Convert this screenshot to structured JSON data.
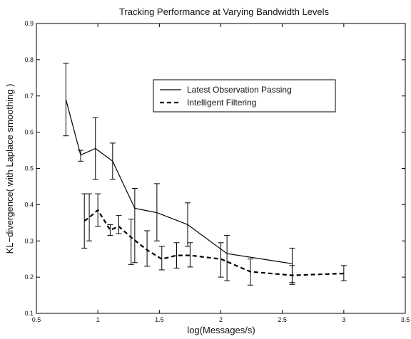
{
  "chart_data": {
    "type": "line",
    "title": "Tracking Performance at Varying Bandwidth Levels",
    "xlabel": "log(Messages/s)",
    "ylabel": "KL−divergence( with Laplace smoothing )",
    "xlim": [
      0.5,
      3.5
    ],
    "ylim": [
      0.1,
      0.9
    ],
    "x_ticks": [
      0.5,
      1,
      1.5,
      2,
      2.5,
      3,
      3.5
    ],
    "x_tick_labels": [
      "0.5",
      "1",
      "1.5",
      "2",
      "2.5",
      "3",
      "3.5"
    ],
    "y_ticks": [
      0.1,
      0.2,
      0.3,
      0.4,
      0.5,
      0.6,
      0.7,
      0.8,
      0.9
    ],
    "y_tick_labels": [
      "0.1",
      "0.2",
      "0.3",
      "0.4",
      "0.5",
      "0.6",
      "0.7",
      "0.8",
      "0.9"
    ],
    "grid": false,
    "legend_position": "upper-center",
    "series": [
      {
        "name": "Latest Observation Passing",
        "line_style": "solid",
        "color": "#000000",
        "x": [
          0.74,
          0.86,
          0.98,
          1.12,
          1.3,
          1.48,
          1.73,
          2.05,
          2.58
        ],
        "y": [
          0.69,
          0.537,
          0.555,
          0.52,
          0.39,
          0.378,
          0.345,
          0.265,
          0.237
        ],
        "err_low": [
          0.59,
          0.52,
          0.47,
          0.47,
          0.24,
          0.3,
          0.285,
          0.19,
          0.185
        ],
        "err_high": [
          0.79,
          0.55,
          0.64,
          0.57,
          0.445,
          0.458,
          0.405,
          0.315,
          0.28
        ]
      },
      {
        "name": "Intelligent Filtering",
        "line_style": "dashed",
        "color": "#000000",
        "x": [
          0.89,
          0.93,
          1.0,
          1.1,
          1.17,
          1.27,
          1.4,
          1.52,
          1.64,
          1.75,
          2.0,
          2.24,
          2.58,
          3.0
        ],
        "y": [
          0.355,
          0.365,
          0.385,
          0.33,
          0.34,
          0.31,
          0.275,
          0.25,
          0.26,
          0.26,
          0.25,
          0.215,
          0.205,
          0.21
        ],
        "err_low": [
          0.28,
          0.3,
          0.34,
          0.315,
          0.32,
          0.235,
          0.23,
          0.22,
          0.225,
          0.228,
          0.2,
          0.178,
          0.18,
          0.19
        ],
        "err_high": [
          0.43,
          0.43,
          0.43,
          0.345,
          0.37,
          0.36,
          0.328,
          0.285,
          0.295,
          0.295,
          0.295,
          0.25,
          0.232,
          0.232
        ]
      }
    ]
  }
}
